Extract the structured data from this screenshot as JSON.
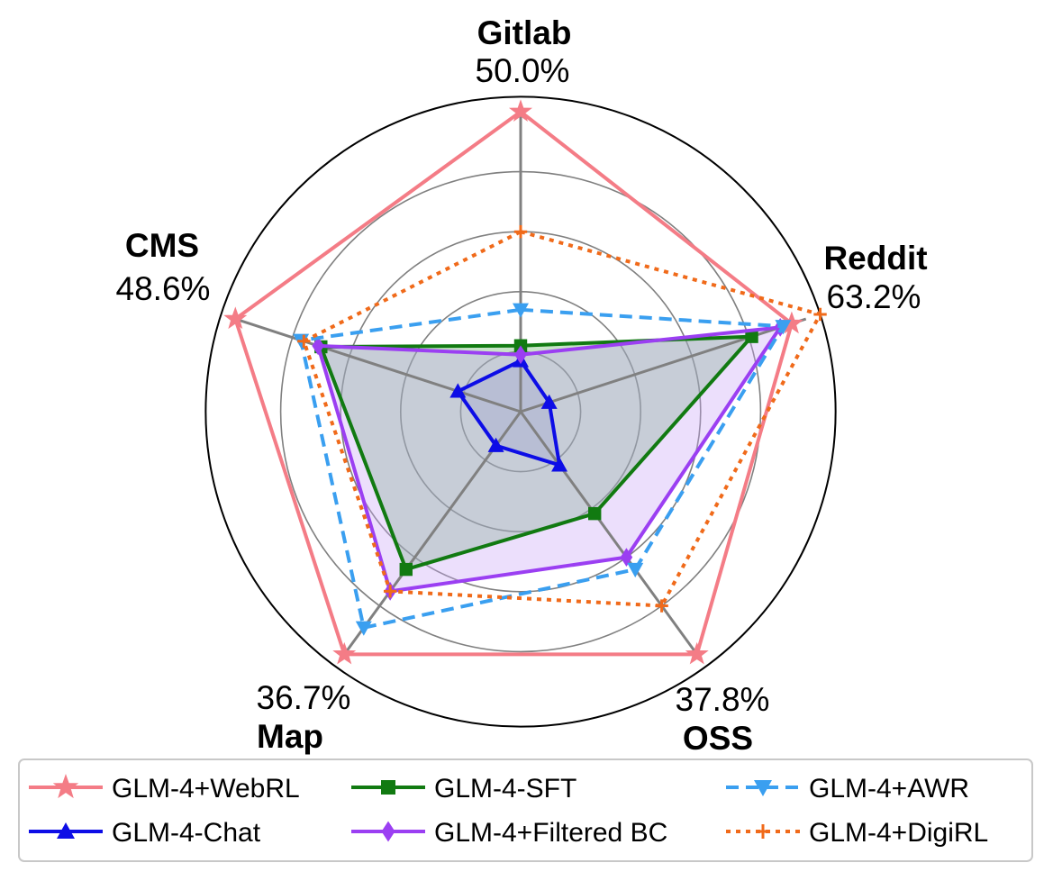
{
  "chart_data": {
    "type": "radar",
    "axes": [
      {
        "name": "Gitlab",
        "max_label": "50.0%",
        "max": 50.0
      },
      {
        "name": "Reddit",
        "max_label": "63.2%",
        "max": 63.2
      },
      {
        "name": "OSS",
        "max_label": "37.8%",
        "max": 37.8
      },
      {
        "name": "Map",
        "max_label": "36.7%",
        "max": 36.7
      },
      {
        "name": "CMS",
        "max_label": "48.6%",
        "max": 48.6
      }
    ],
    "rlim": [
      0,
      1.05
    ],
    "ring_levels": [
      0.2,
      0.4,
      0.6,
      0.8
    ],
    "grid": true,
    "legend_position": "bottom",
    "series": [
      {
        "name": "GLM-4+WebRL",
        "color": "#f47c86",
        "marker": "star",
        "dash": "solid",
        "fill": false,
        "values": [
          1.0,
          0.95,
          1.0,
          1.0,
          1.0
        ]
      },
      {
        "name": "GLM-4-Chat",
        "color": "#0d0de6",
        "marker": "triangle-up",
        "dash": "solid",
        "fill": true,
        "fill_color": "#9a9ae8",
        "values": [
          0.17,
          0.1,
          0.22,
          0.14,
          0.22
        ]
      },
      {
        "name": "GLM-4-SFT",
        "color": "#117a11",
        "marker": "square",
        "dash": "solid",
        "fill": true,
        "fill_color": "#5fb35f",
        "values": [
          0.22,
          0.81,
          0.42,
          0.65,
          0.7
        ]
      },
      {
        "name": "GLM-4+Filtered BC",
        "color": "#9b3ff2",
        "marker": "diamond",
        "dash": "solid",
        "fill": true,
        "fill_color": "#c9a2f5",
        "values": [
          0.19,
          0.91,
          0.6,
          0.74,
          0.71
        ]
      },
      {
        "name": "GLM-4+AWR",
        "color": "#3a9ff0",
        "marker": "triangle-down",
        "dash": "dashed",
        "fill": false,
        "values": [
          0.34,
          0.92,
          0.65,
          0.89,
          0.77
        ]
      },
      {
        "name": "GLM-4+DigiRL",
        "color": "#f06a1a",
        "marker": "plus",
        "dash": "dotted",
        "fill": false,
        "values": [
          0.6,
          1.05,
          0.8,
          0.74,
          0.76
        ]
      }
    ]
  }
}
